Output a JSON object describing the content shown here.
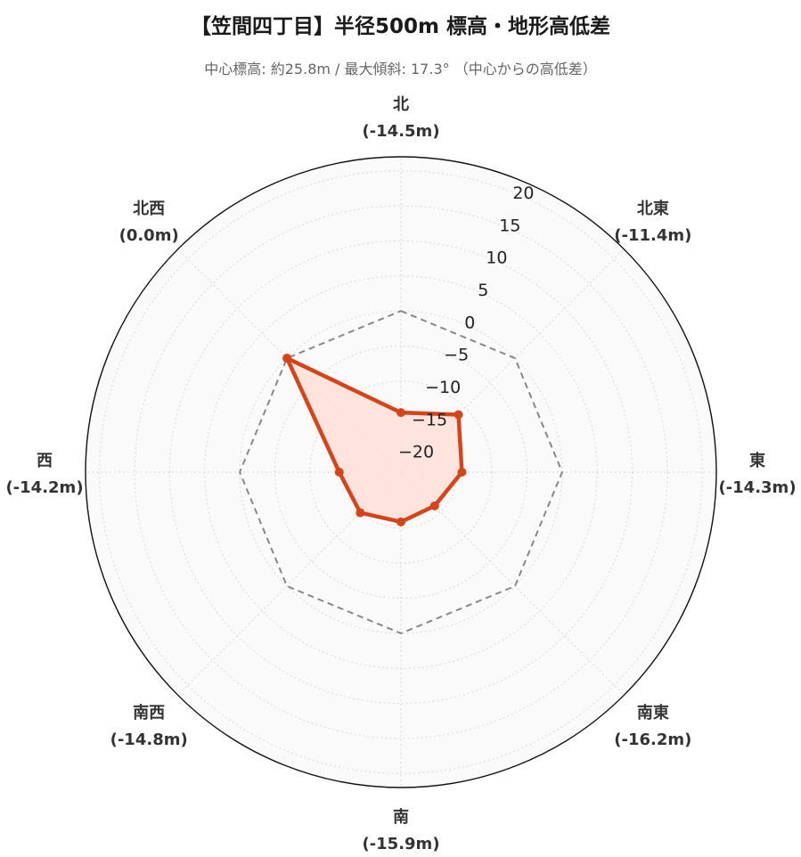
{
  "title": "【笠間四丁目】半径500m 標高・地形高低差",
  "subtitle": "中心標高: 約25.8m / 最大傾斜: 17.3°  （中心からの高低差）",
  "chart_data": {
    "type": "radar",
    "title": "【笠間四丁目】半径500m 標高・地形高低差",
    "subtitle": "中心標高: 約25.8m / 最大傾斜: 17.3°  （中心からの高低差）",
    "directions": [
      "北",
      "北東",
      "東",
      "南東",
      "南",
      "南西",
      "西",
      "北西"
    ],
    "direction_labels": [
      "(-14.5m)",
      "(-11.4m)",
      "(-14.3m)",
      "(-16.2m)",
      "(-15.9m)",
      "(-14.8m)",
      "(-14.2m)",
      "(0.0m)"
    ],
    "series": [
      {
        "values": [
          -14.5,
          -11.4,
          -14.3,
          -16.2,
          -15.9,
          -14.8,
          -14.2,
          0.0
        ],
        "color": "#d4451c",
        "fill": "#fde0d8"
      }
    ],
    "reference_line": {
      "value": 0,
      "style": "dashed",
      "color": "#888888"
    },
    "radial_range": [
      -23,
      22
    ],
    "radial_ticks": [
      -20,
      -15,
      -10,
      -5,
      0,
      5,
      10,
      15,
      20
    ],
    "radial_tick_labels": [
      "−20",
      "−15",
      "−10",
      "−5",
      "0",
      "5",
      "10",
      "15",
      "20"
    ],
    "grid": true
  }
}
